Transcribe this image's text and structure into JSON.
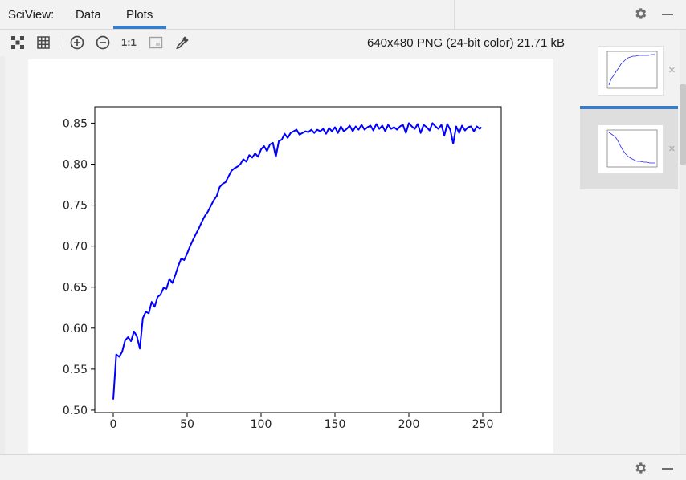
{
  "header": {
    "title": "SciView:",
    "tabs": [
      {
        "label": "Data"
      },
      {
        "label": "Plots"
      }
    ]
  },
  "toolbar": {
    "zoom_actual_label": "1:1",
    "image_info": "640x480 PNG (24-bit color) 21.71 kB"
  },
  "thumbnails": [
    {
      "close_glyph": "×",
      "selected": false
    },
    {
      "close_glyph": "×",
      "selected": true
    }
  ],
  "colors": {
    "accent": "#3b7cc7",
    "series_line": "#0000ff"
  },
  "chart_data": {
    "type": "line",
    "xlim": [
      -12.5,
      262.5
    ],
    "ylim": [
      0.497,
      0.87
    ],
    "xticks": [
      0,
      50,
      100,
      150,
      200,
      250
    ],
    "yticks": [
      0.5,
      0.55,
      0.6,
      0.65,
      0.7,
      0.75,
      0.8,
      0.85
    ],
    "xtick_labels": [
      "0",
      "50",
      "100",
      "150",
      "200",
      "250"
    ],
    "ytick_labels": [
      "0.50",
      "0.55",
      "0.60",
      "0.65",
      "0.70",
      "0.75",
      "0.80",
      "0.85"
    ],
    "title": "",
    "xlabel": "",
    "ylabel": "",
    "grid": false,
    "series": [
      {
        "color": "#0000ff",
        "x": [
          0,
          2,
          4,
          6,
          8,
          10,
          12,
          14,
          16,
          18,
          20,
          22,
          24,
          26,
          28,
          30,
          32,
          34,
          36,
          38,
          40,
          42,
          44,
          46,
          48,
          50,
          52,
          54,
          56,
          58,
          60,
          62,
          64,
          66,
          68,
          70,
          72,
          74,
          76,
          78,
          80,
          82,
          84,
          86,
          88,
          90,
          92,
          94,
          96,
          98,
          100,
          102,
          104,
          106,
          108,
          110,
          112,
          114,
          116,
          118,
          120,
          122,
          124,
          126,
          128,
          130,
          132,
          134,
          136,
          138,
          140,
          142,
          144,
          146,
          148,
          150,
          152,
          154,
          156,
          158,
          160,
          162,
          164,
          166,
          168,
          170,
          172,
          174,
          176,
          178,
          180,
          182,
          184,
          186,
          188,
          190,
          192,
          194,
          196,
          198,
          200,
          202,
          204,
          206,
          208,
          210,
          212,
          214,
          216,
          218,
          220,
          222,
          224,
          226,
          228,
          230,
          232,
          234,
          236,
          238,
          240,
          242,
          244,
          246,
          248,
          249
        ],
        "y": [
          0.513,
          0.568,
          0.565,
          0.571,
          0.585,
          0.589,
          0.584,
          0.596,
          0.59,
          0.575,
          0.612,
          0.62,
          0.618,
          0.632,
          0.626,
          0.638,
          0.641,
          0.649,
          0.648,
          0.66,
          0.655,
          0.665,
          0.676,
          0.685,
          0.683,
          0.691,
          0.7,
          0.708,
          0.715,
          0.722,
          0.73,
          0.737,
          0.742,
          0.749,
          0.756,
          0.761,
          0.772,
          0.776,
          0.778,
          0.785,
          0.792,
          0.795,
          0.797,
          0.8,
          0.806,
          0.803,
          0.811,
          0.808,
          0.813,
          0.809,
          0.818,
          0.822,
          0.816,
          0.824,
          0.826,
          0.809,
          0.828,
          0.83,
          0.837,
          0.832,
          0.838,
          0.84,
          0.842,
          0.836,
          0.838,
          0.84,
          0.839,
          0.842,
          0.838,
          0.842,
          0.84,
          0.843,
          0.837,
          0.844,
          0.84,
          0.845,
          0.838,
          0.846,
          0.84,
          0.843,
          0.847,
          0.84,
          0.846,
          0.842,
          0.848,
          0.842,
          0.845,
          0.847,
          0.841,
          0.849,
          0.843,
          0.847,
          0.84,
          0.848,
          0.843,
          0.845,
          0.842,
          0.846,
          0.848,
          0.838,
          0.85,
          0.846,
          0.843,
          0.849,
          0.838,
          0.848,
          0.845,
          0.841,
          0.85,
          0.846,
          0.843,
          0.848,
          0.835,
          0.849,
          0.842,
          0.825,
          0.846,
          0.838,
          0.847,
          0.841,
          0.845,
          0.846,
          0.84,
          0.846,
          0.843,
          0.845
        ]
      }
    ]
  }
}
